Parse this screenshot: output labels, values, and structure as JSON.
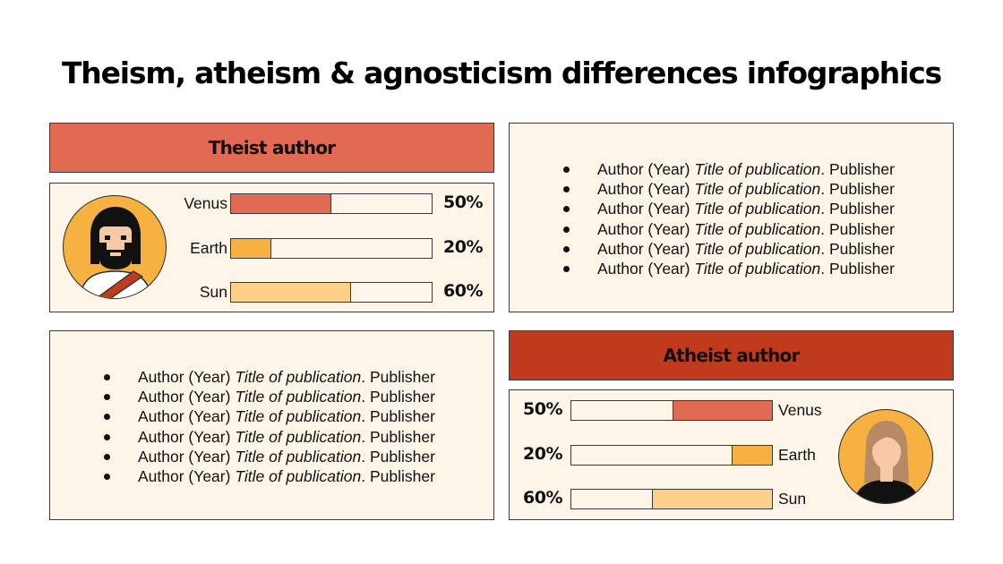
{
  "title": "Theism, atheism & agnosticism differences infographics",
  "colors": {
    "venus": "#e06a52",
    "earth": "#f7b141",
    "sun": "#fdd08a",
    "theist_header": "#e06a52",
    "atheist_header": "#c03a1e",
    "panel_bg": "#fdf6e8"
  },
  "theist": {
    "header": "Theist author",
    "avatar_icon": "bearded-man-icon"
  },
  "atheist": {
    "header": "Atheist author",
    "avatar_icon": "woman-icon"
  },
  "references_top": [
    {
      "author": "Author (Year)",
      "title": "Title of publication",
      "publisher": ". Publisher"
    },
    {
      "author": "Author (Year)",
      "title": "Title of publication",
      "publisher": ". Publisher"
    },
    {
      "author": "Author (Year)",
      "title": "Title of publication",
      "publisher": ". Publisher"
    },
    {
      "author": "Author (Year)",
      "title": "Title of publication",
      "publisher": ". Publisher"
    },
    {
      "author": "Author (Year)",
      "title": "Title of publication",
      "publisher": ". Publisher"
    },
    {
      "author": "Author (Year)",
      "title": "Title of publication",
      "publisher": ". Publisher"
    }
  ],
  "references_bottom": [
    {
      "author": "Author (Year)",
      "title": "Title of publication",
      "publisher": ". Publisher"
    },
    {
      "author": "Author (Year)",
      "title": "Title of publication",
      "publisher": ". Publisher"
    },
    {
      "author": "Author (Year)",
      "title": "Title of publication",
      "publisher": ". Publisher"
    },
    {
      "author": "Author (Year)",
      "title": "Title of publication",
      "publisher": ". Publisher"
    },
    {
      "author": "Author (Year)",
      "title": "Title of publication",
      "publisher": ". Publisher"
    },
    {
      "author": "Author (Year)",
      "title": "Title of publication",
      "publisher": ". Publisher"
    }
  ],
  "chart_data": [
    {
      "type": "bar",
      "title": "Theist author",
      "categories": [
        "Venus",
        "Earth",
        "Sun"
      ],
      "values": [
        50,
        20,
        60
      ],
      "value_labels": [
        "50%",
        "20%",
        "60%"
      ],
      "ylim": [
        0,
        100
      ],
      "orientation": "horizontal",
      "direction": "left-to-right"
    },
    {
      "type": "bar",
      "title": "Atheist author",
      "categories": [
        "Venus",
        "Earth",
        "Sun"
      ],
      "values": [
        50,
        20,
        60
      ],
      "value_labels": [
        "50%",
        "20%",
        "60%"
      ],
      "ylim": [
        0,
        100
      ],
      "orientation": "horizontal",
      "direction": "right-to-left"
    }
  ]
}
